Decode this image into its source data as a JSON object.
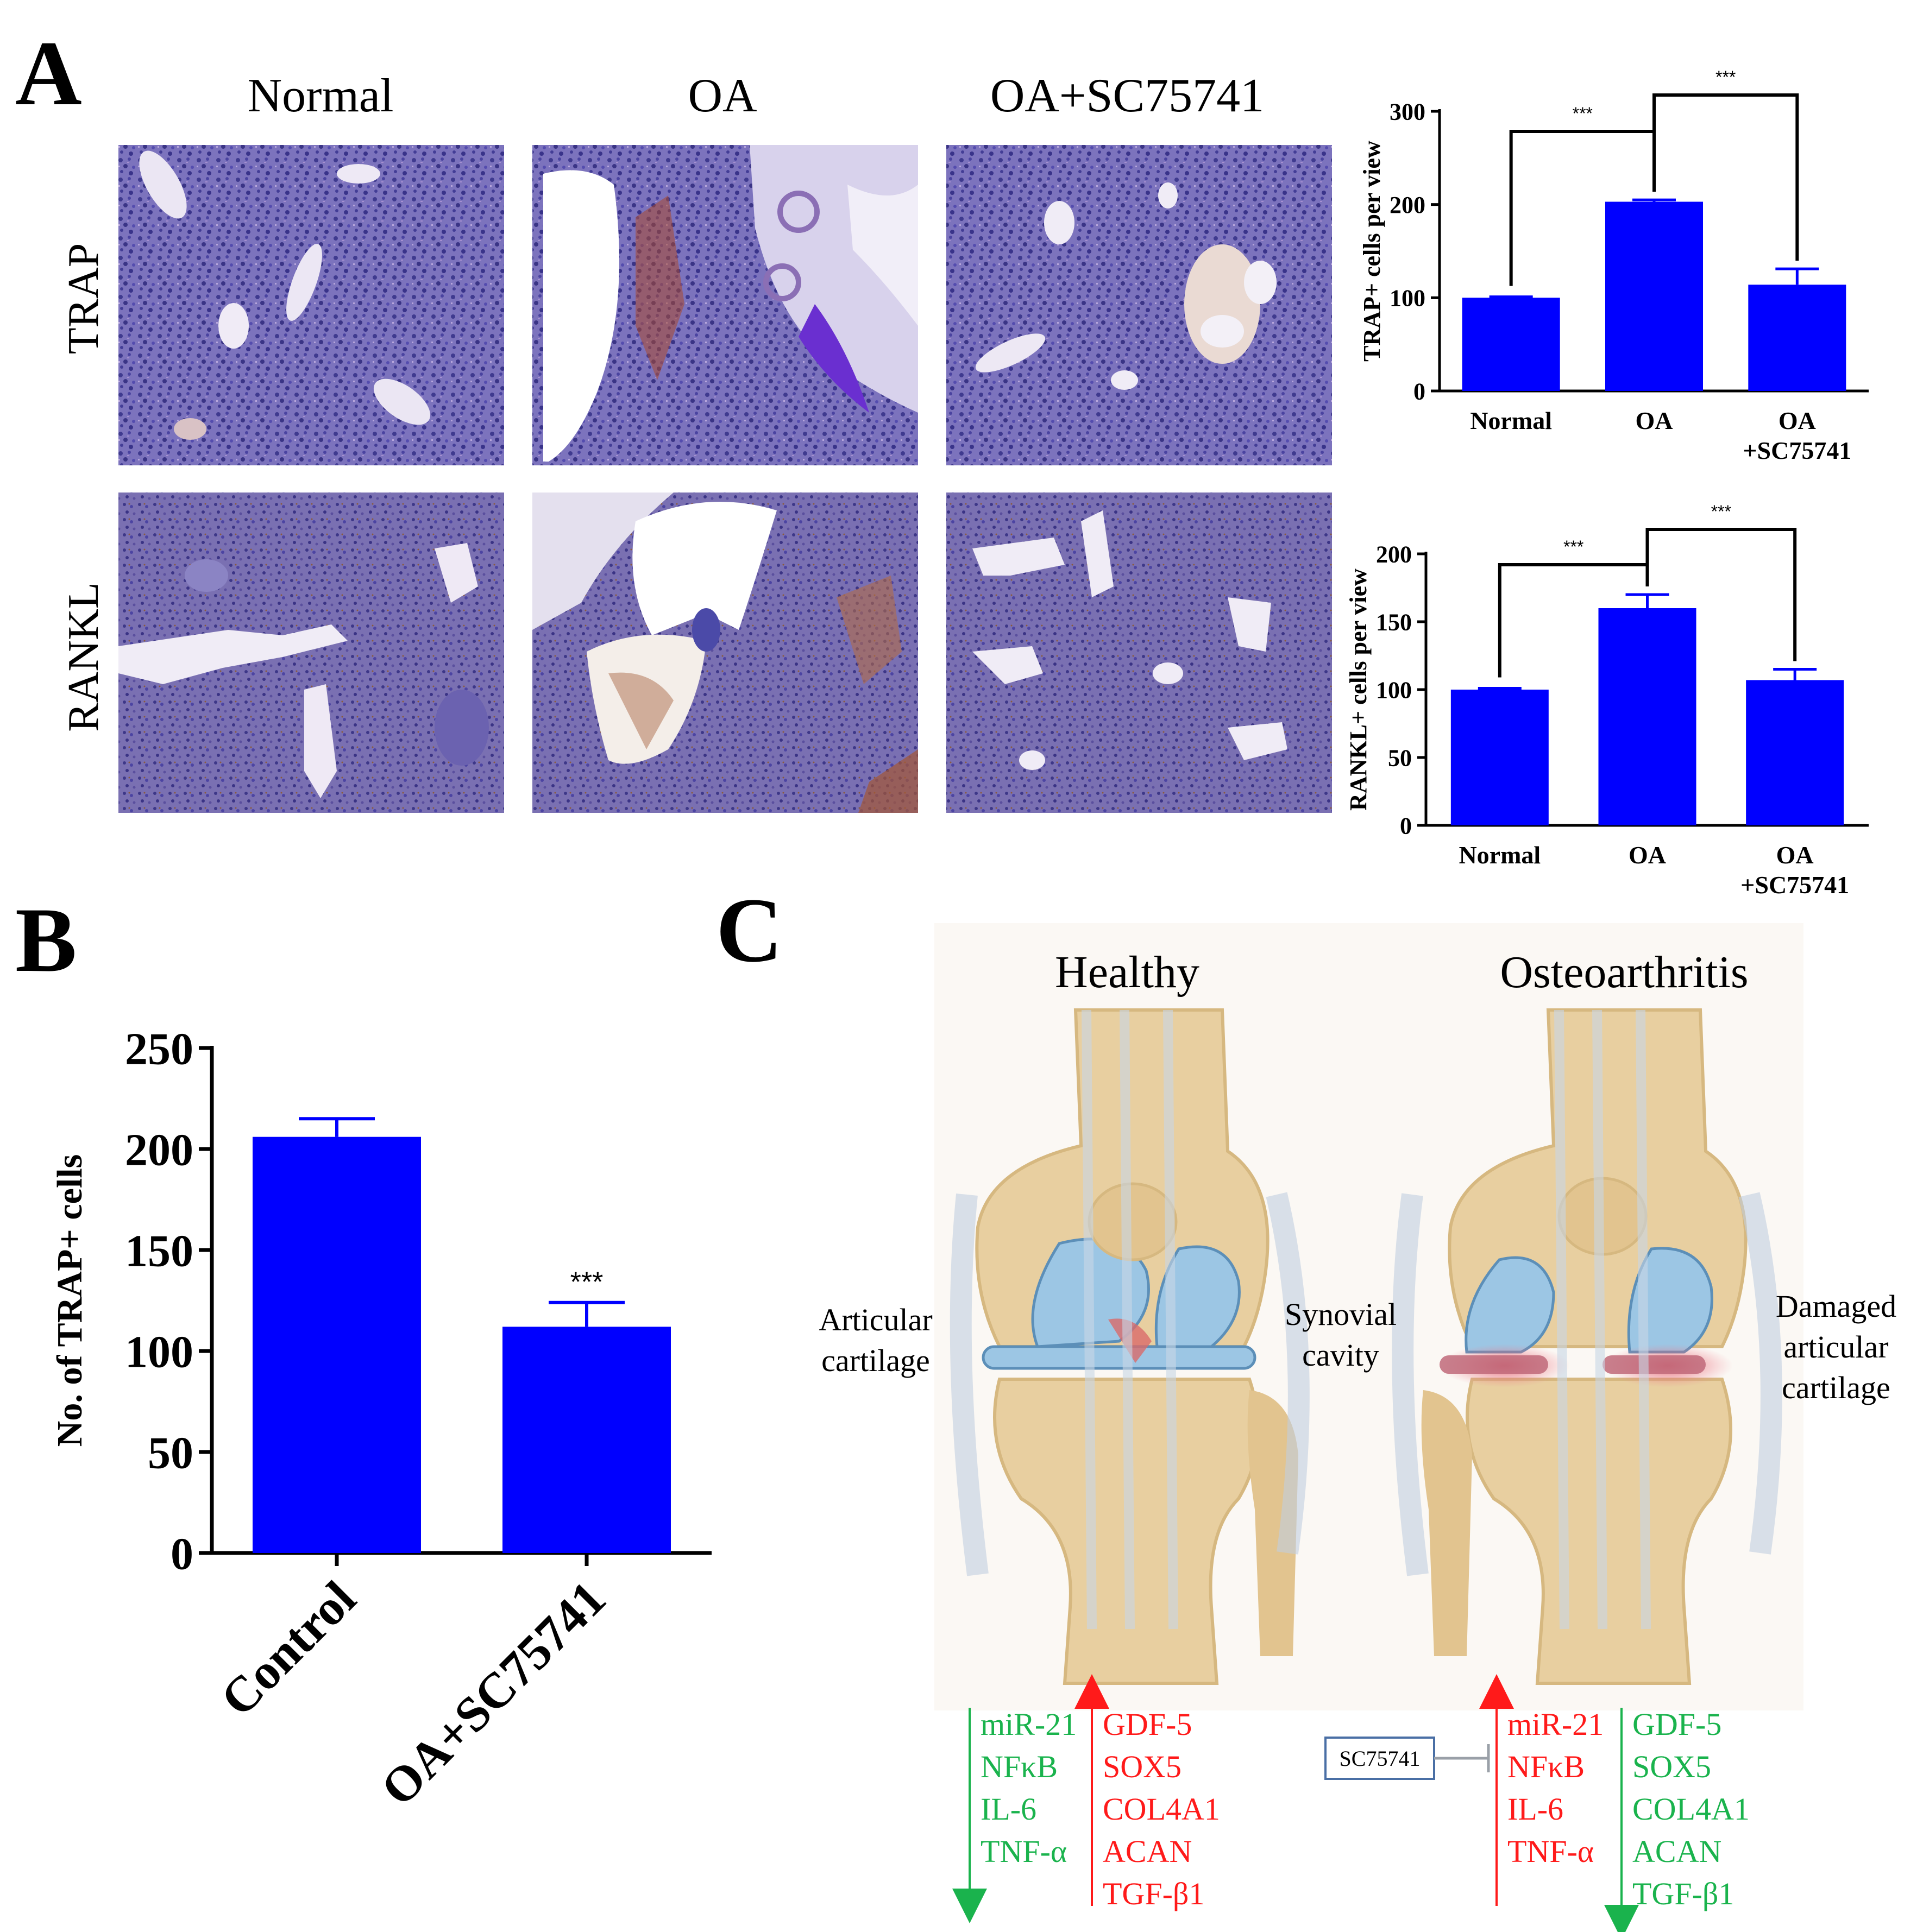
{
  "panels": {
    "A": "A",
    "B": "B",
    "C": "C"
  },
  "panel_a": {
    "column_labels": [
      "Normal",
      "OA",
      "OA+SC75741"
    ],
    "row_labels": [
      "TRAP",
      "RANKL"
    ]
  },
  "chart_data": [
    {
      "type": "bar",
      "panel": "A-top",
      "categories": [
        [
          "Normal"
        ],
        [
          "OA"
        ],
        [
          "OA",
          "+SC75741"
        ]
      ],
      "values": [
        100,
        203,
        114
      ],
      "errors": [
        1,
        2,
        17
      ],
      "ylabel": "TRAP+ cells per view",
      "ylim": [
        0,
        300
      ],
      "yticks": [
        0,
        100,
        200,
        300
      ],
      "significance": [
        {
          "from": 0,
          "to": 1,
          "label": "***"
        },
        {
          "from": 1,
          "to": 2,
          "label": "***"
        }
      ],
      "color": "#0000ff"
    },
    {
      "type": "bar",
      "panel": "A-bottom",
      "categories": [
        [
          "Normal"
        ],
        [
          "OA"
        ],
        [
          "OA",
          "+SC75741"
        ]
      ],
      "values": [
        100,
        160,
        107
      ],
      "errors": [
        1,
        10,
        8
      ],
      "ylabel": "RANKL+ cells per view",
      "ylim": [
        0,
        200
      ],
      "yticks": [
        0,
        50,
        100,
        150,
        200
      ],
      "significance": [
        {
          "from": 0,
          "to": 1,
          "label": "***"
        },
        {
          "from": 1,
          "to": 2,
          "label": "***"
        }
      ],
      "color": "#0000ff"
    },
    {
      "type": "bar",
      "panel": "B",
      "categories": [
        "Control",
        "OA+SC75741"
      ],
      "values": [
        206,
        112
      ],
      "errors": [
        9,
        12
      ],
      "ylabel": "No. of  TRAP+ cells",
      "ylim": [
        0,
        250
      ],
      "yticks": [
        0,
        50,
        100,
        150,
        200,
        250
      ],
      "significance_labels": [
        "",
        "***"
      ],
      "color": "#0000ff"
    }
  ],
  "panel_c": {
    "titles": {
      "healthy": "Healthy",
      "oa": "Osteoarthritis"
    },
    "labels": {
      "articular_cartilage": [
        "Articular",
        "cartilage"
      ],
      "synovial_cavity": [
        "Synovial",
        "cavity"
      ],
      "damaged_cartilage": [
        "Damaged",
        "articular",
        "cartilage"
      ]
    },
    "healthy_down": [
      "miR-21",
      "NFκB",
      "IL-6",
      "TNF-α"
    ],
    "healthy_up": [
      "GDF-5",
      "SOX5",
      "COL4A1",
      "ACAN",
      "TGF-β1"
    ],
    "oa_up": [
      "miR-21",
      "NFκB",
      "IL-6",
      "TNF-α"
    ],
    "oa_down": [
      "GDF-5",
      "SOX5",
      "COL4A1",
      "ACAN",
      "TGF-β1"
    ],
    "inhibitor": "SC75741",
    "colors": {
      "up": "#ff1a1a",
      "down": "#1ab34d",
      "bone": "#e8cfa0",
      "cartilage": "#9cc6e4"
    }
  }
}
